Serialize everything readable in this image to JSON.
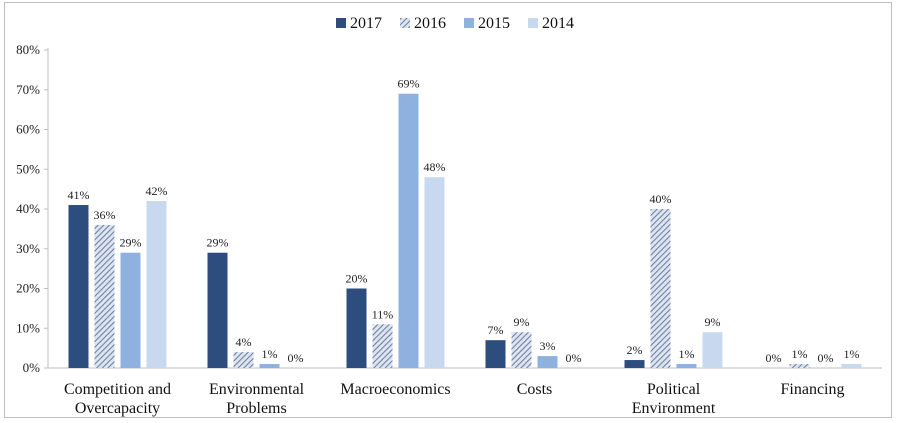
{
  "chart_data": {
    "type": "bar",
    "categories": [
      [
        "Competition and",
        "Overcapacity"
      ],
      [
        "Environmental",
        "Problems"
      ],
      [
        "Macroeconomics"
      ],
      [
        "Costs"
      ],
      [
        "Political",
        "Environment"
      ],
      [
        "Financing"
      ]
    ],
    "series": [
      {
        "name": "2017",
        "values": [
          41,
          29,
          20,
          7,
          2,
          0
        ],
        "labels": [
          "41%",
          "29%",
          "20%",
          "7%",
          "2%",
          "0%"
        ],
        "color": "#2e4d7f",
        "pattern": "solid"
      },
      {
        "name": "2016",
        "values": [
          36,
          4,
          11,
          9,
          40,
          1
        ],
        "labels": [
          "36%",
          "4%",
          "11%",
          "9%",
          "40%",
          "1%"
        ],
        "color": "#7a8fb3",
        "pattern": "hatch"
      },
      {
        "name": "2015",
        "values": [
          29,
          1,
          69,
          3,
          1,
          0
        ],
        "labels": [
          "29%",
          "1%",
          "69%",
          "3%",
          "1%",
          "0%"
        ],
        "color": "#8fb1e0",
        "pattern": "solid"
      },
      {
        "name": "2014",
        "values": [
          42,
          0,
          48,
          0,
          9,
          1
        ],
        "labels": [
          "42%",
          "0%",
          "48%",
          "0%",
          "9%",
          "1%"
        ],
        "color": "#c8d9ef",
        "pattern": "solid"
      }
    ],
    "y_ticks": [
      "0%",
      "10%",
      "20%",
      "30%",
      "40%",
      "50%",
      "60%",
      "70%",
      "80%"
    ],
    "ylim": [
      0,
      80
    ],
    "grid": false,
    "legend_position": "top-center"
  }
}
